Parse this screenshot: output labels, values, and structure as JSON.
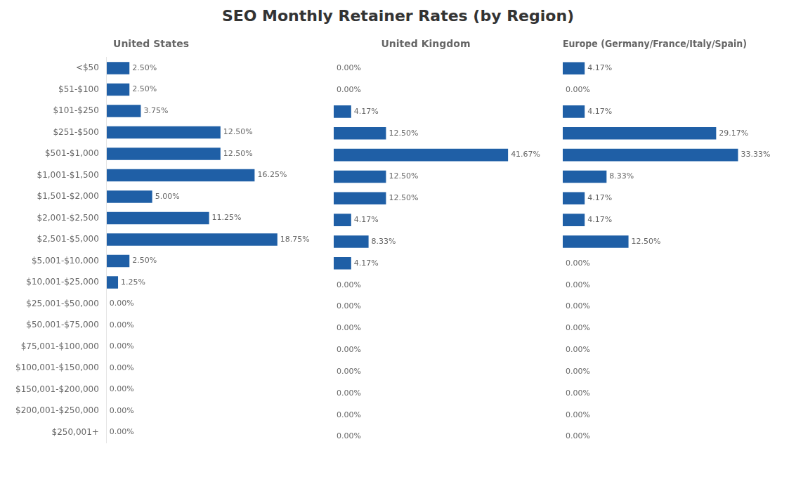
{
  "title": "SEO Monthly Retainer Rates (by Region)",
  "chart_data": [
    {
      "type": "bar",
      "orientation": "horizontal",
      "title": "United States",
      "categories": [
        "<$50",
        "$51-$100",
        "$101-$250",
        "$251-$500",
        "$501-$1,000",
        "$1,001-$1,500",
        "$1,501-$2,000",
        "$2,001-$2,500",
        "$2,501-$5,000",
        "$5,001-$10,000",
        "$10,001-$25,000",
        "$25,001-$50,000",
        "$50,001-$75,000",
        "$75,001-$100,000",
        "$100,001-$150,000",
        "$150,001-$200,000",
        "$200,001-$250,000",
        "$250,001+"
      ],
      "values": [
        2.5,
        2.5,
        3.75,
        12.5,
        12.5,
        16.25,
        5.0,
        11.25,
        18.75,
        2.5,
        1.25,
        0.0,
        0.0,
        0.0,
        0.0,
        0.0,
        0.0,
        0.0
      ],
      "value_labels": [
        "2.50%",
        "2.50%",
        "3.75%",
        "12.50%",
        "12.50%",
        "16.25%",
        "5.00%",
        "11.25%",
        "18.75%",
        "2.50%",
        "1.25%",
        "0.00%",
        "0.00%",
        "0.00%",
        "0.00%",
        "0.00%",
        "0.00%",
        "0.00%"
      ],
      "color": "#1f5fa6",
      "xlim": [
        0,
        20
      ],
      "data_labels": true,
      "tick_labels": "y"
    },
    {
      "type": "bar",
      "orientation": "horizontal",
      "title": "United Kingdom",
      "categories": [
        "<$50",
        "$51-$100",
        "$101-$250",
        "$251-$500",
        "$501-$1,000",
        "$1,001-$1,500",
        "$1,501-$2,000",
        "$2,001-$2,500",
        "$2,501-$5,000",
        "$5,001-$10,000",
        "$10,001-$25,000",
        "$25,001-$50,000",
        "$50,001-$75,000",
        "$75,001-$100,000",
        "$100,001-$150,000",
        "$150,001-$200,000",
        "$200,001-$250,000",
        "$250,001+"
      ],
      "values": [
        0.0,
        0.0,
        4.17,
        12.5,
        41.67,
        12.5,
        12.5,
        4.17,
        8.33,
        4.17,
        0.0,
        0.0,
        0.0,
        0.0,
        0.0,
        0.0,
        0.0,
        0.0
      ],
      "value_labels": [
        "0.00%",
        "0.00%",
        "4.17%",
        "12.50%",
        "41.67%",
        "12.50%",
        "12.50%",
        "4.17%",
        "8.33%",
        "4.17%",
        "0.00%",
        "0.00%",
        "0.00%",
        "0.00%",
        "0.00%",
        "0.00%",
        "0.00%",
        "0.00%"
      ],
      "color": "#1f5fa6",
      "xlim": [
        0,
        44
      ],
      "data_labels": true,
      "tick_labels": false
    },
    {
      "type": "bar",
      "orientation": "horizontal",
      "title": "Europe (Germany/France/Italy/Spain)",
      "categories": [
        "<$50",
        "$51-$100",
        "$101-$250",
        "$251-$500",
        "$501-$1,000",
        "$1,001-$1,500",
        "$1,501-$2,000",
        "$2,001-$2,500",
        "$2,501-$5,000",
        "$5,001-$10,000",
        "$10,001-$25,000",
        "$25,001-$50,000",
        "$50,001-$75,000",
        "$75,001-$100,000",
        "$100,001-$150,000",
        "$150,001-$200,000",
        "$200,001-$250,000",
        "$250,001+"
      ],
      "values": [
        4.17,
        0.0,
        4.17,
        29.17,
        33.33,
        8.33,
        4.17,
        4.17,
        12.5,
        0.0,
        0.0,
        0.0,
        0.0,
        0.0,
        0.0,
        0.0,
        0.0,
        0.0
      ],
      "value_labels": [
        "4.17%",
        "0.00%",
        "4.17%",
        "29.17%",
        "33.33%",
        "8.33%",
        "4.17%",
        "4.17%",
        "12.50%",
        "0.00%",
        "0.00%",
        "0.00%",
        "0.00%",
        "0.00%",
        "0.00%",
        "0.00%",
        "0.00%",
        "0.00%"
      ],
      "color": "#1f5fa6",
      "xlim": [
        0,
        35
      ],
      "data_labels": true,
      "tick_labels": false
    }
  ]
}
